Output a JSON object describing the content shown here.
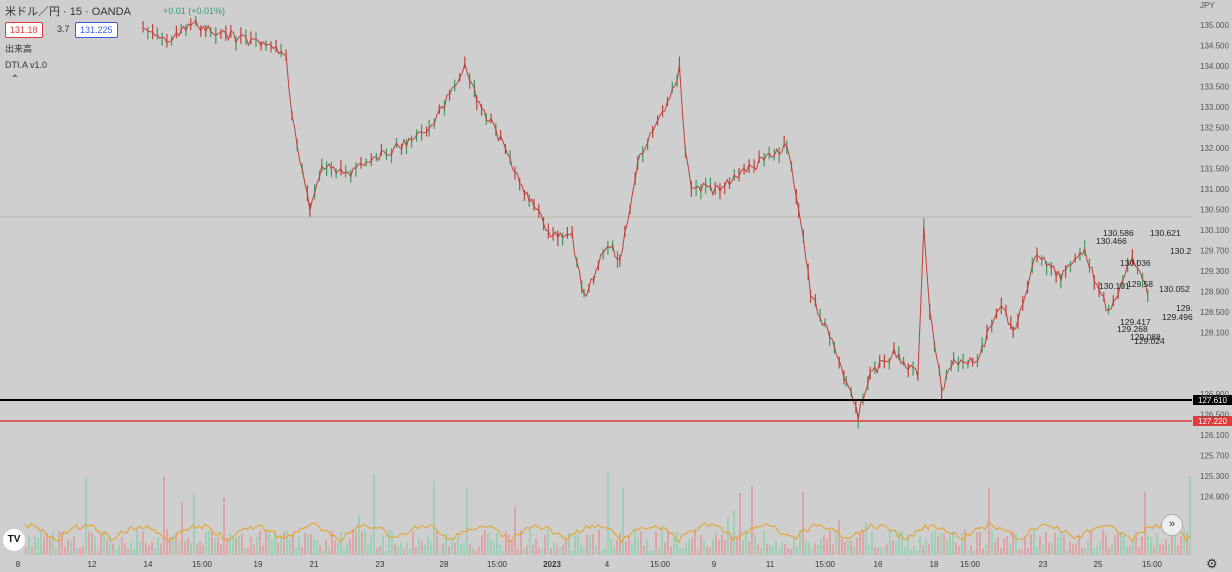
{
  "header": {
    "symbol": "米ドル／円 · 15 · OANDA",
    "ohlc_text": "+0.01 (+0.01%)",
    "sell_price": "131.18",
    "spread": "3.7",
    "buy_price": "131.225",
    "volume_label": "出来高",
    "indicator_label": "DTI.A v1.0"
  },
  "axis": {
    "currency": "JPY"
  },
  "colors": {
    "background": "#cfcfcf",
    "up": "#3a9a5e",
    "down": "#c0403a",
    "support_line": "#000000",
    "resistance_line": "#e03a3a",
    "volume_ma": "#e8a020"
  },
  "chart_data": {
    "type": "candlestick",
    "y_axis_ticks": [
      "135.000",
      "134.500",
      "134.000",
      "133.500",
      "133.000",
      "132.500",
      "132.000",
      "131.500",
      "131.000",
      "130.500",
      "130.100",
      "129.700",
      "129.300",
      "128.900",
      "128.500",
      "128.100",
      "127.610",
      "127.220",
      "126.900",
      "126.500",
      "126.100",
      "125.700",
      "125.300",
      "124.900"
    ],
    "x_axis_ticks": [
      "8",
      "12",
      "14",
      "15:00",
      "19",
      "21",
      "23",
      "28",
      "15:00",
      "2023",
      "4",
      "15:00",
      "9",
      "11",
      "15:00",
      "16",
      "18",
      "15:00",
      "23",
      "25",
      "15:00"
    ],
    "price_series": [
      {
        "x": 0.12,
        "y": 135.0
      },
      {
        "x": 0.14,
        "y": 134.7
      },
      {
        "x": 0.16,
        "y": 135.1
      },
      {
        "x": 0.24,
        "y": 134.5
      },
      {
        "x": 0.245,
        "y": 133.2
      },
      {
        "x": 0.26,
        "y": 131.5
      },
      {
        "x": 0.27,
        "y": 132.3
      },
      {
        "x": 0.29,
        "y": 132.1
      },
      {
        "x": 0.32,
        "y": 132.5
      },
      {
        "x": 0.36,
        "y": 133.0
      },
      {
        "x": 0.39,
        "y": 134.2
      },
      {
        "x": 0.4,
        "y": 133.6
      },
      {
        "x": 0.42,
        "y": 132.8
      },
      {
        "x": 0.44,
        "y": 131.8
      },
      {
        "x": 0.46,
        "y": 131.0
      },
      {
        "x": 0.48,
        "y": 130.9
      },
      {
        "x": 0.49,
        "y": 129.7
      },
      {
        "x": 0.51,
        "y": 130.8
      },
      {
        "x": 0.52,
        "y": 130.4
      },
      {
        "x": 0.535,
        "y": 132.4
      },
      {
        "x": 0.56,
        "y": 133.5
      },
      {
        "x": 0.57,
        "y": 134.2
      },
      {
        "x": 0.575,
        "y": 132.5
      },
      {
        "x": 0.58,
        "y": 131.9
      },
      {
        "x": 0.6,
        "y": 131.8
      },
      {
        "x": 0.62,
        "y": 132.1
      },
      {
        "x": 0.66,
        "y": 132.7
      },
      {
        "x": 0.67,
        "y": 131.5
      },
      {
        "x": 0.68,
        "y": 129.8
      },
      {
        "x": 0.7,
        "y": 128.7
      },
      {
        "x": 0.71,
        "y": 128.0
      },
      {
        "x": 0.72,
        "y": 127.4
      },
      {
        "x": 0.73,
        "y": 128.2
      },
      {
        "x": 0.75,
        "y": 128.6
      },
      {
        "x": 0.77,
        "y": 128.2
      },
      {
        "x": 0.775,
        "y": 131.1
      },
      {
        "x": 0.78,
        "y": 129.5
      },
      {
        "x": 0.79,
        "y": 127.9
      },
      {
        "x": 0.8,
        "y": 128.4
      },
      {
        "x": 0.82,
        "y": 128.5
      },
      {
        "x": 0.84,
        "y": 129.6
      },
      {
        "x": 0.85,
        "y": 129.0
      },
      {
        "x": 0.87,
        "y": 130.6
      },
      {
        "x": 0.89,
        "y": 130.1
      },
      {
        "x": 0.91,
        "y": 130.6
      },
      {
        "x": 0.93,
        "y": 129.4
      },
      {
        "x": 0.95,
        "y": 130.5
      },
      {
        "x": 0.965,
        "y": 129.7
      }
    ],
    "horizontal_lines": [
      {
        "price": 127.61,
        "label": "127.610",
        "color": "#000000"
      },
      {
        "price": 127.22,
        "label": "127.220",
        "color": "#e03a3a"
      }
    ],
    "price_annotations": [
      "130.586",
      "130.466",
      "130.036",
      "130.101",
      "129.58",
      "129.417",
      "129.268",
      "129.088",
      "129.024",
      "130.621",
      "130.2",
      "130.052",
      "129.",
      "129.496"
    ],
    "volume_panel": {
      "series": "volume",
      "moving_average": "orange"
    }
  }
}
